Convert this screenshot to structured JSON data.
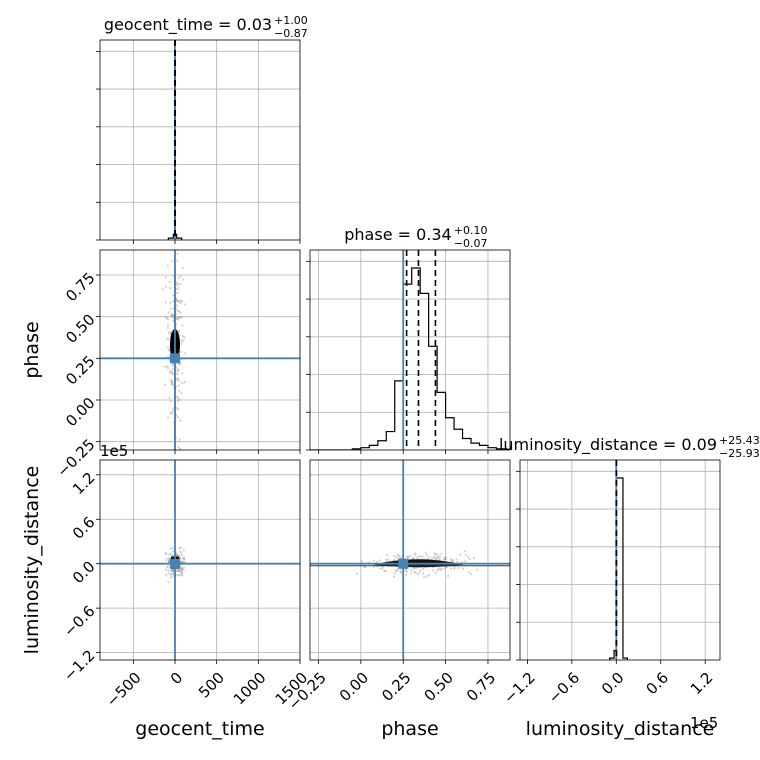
{
  "chart_data": [
    {
      "type": "histogram",
      "panel": "geocent_time",
      "title": "geocent_time = 0.03",
      "title_value": {
        "sup": "+1.00",
        "sub": "−0.87"
      },
      "xlim": [
        -900,
        1500
      ],
      "bins": {
        "edges": [
          -80,
          -20,
          -5,
          5,
          20,
          80
        ],
        "counts": [
          0.01,
          0.03,
          0.97,
          0.03,
          0.01
        ]
      },
      "quantiles": [
        -0.84,
        0.03,
        1.03
      ],
      "truth": 0,
      "grid": true
    },
    {
      "type": "histogram",
      "panel": "phase",
      "title": "phase = 0.34",
      "title_value": {
        "sup": "+0.10",
        "sub": "−0.07"
      },
      "xlim": [
        -0.3,
        0.88
      ],
      "bins": {
        "edges": [
          -0.3,
          -0.25,
          -0.2,
          -0.15,
          -0.1,
          -0.05,
          0.0,
          0.05,
          0.1,
          0.15,
          0.2,
          0.25,
          0.3,
          0.35,
          0.4,
          0.45,
          0.5,
          0.55,
          0.6,
          0.65,
          0.7,
          0.75,
          0.8,
          0.85
        ],
        "counts": [
          0,
          0,
          0,
          0,
          0,
          0.005,
          0.01,
          0.02,
          0.04,
          0.08,
          0.3,
          0.72,
          0.79,
          0.68,
          0.45,
          0.25,
          0.14,
          0.09,
          0.05,
          0.03,
          0.02,
          0.01,
          0.005
        ]
      },
      "quantiles": [
        0.27,
        0.34,
        0.44
      ],
      "truth": 0.25,
      "grid": true
    },
    {
      "type": "histogram",
      "panel": "luminosity_distance",
      "title": "luminosity_distance = 0.09",
      "title_value": {
        "sup": "+25.43",
        "sub": "−25.93"
      },
      "xlim": [
        -130000,
        140000
      ],
      "bins": {
        "edges": [
          -9000,
          -3000,
          0,
          9000,
          15000
        ],
        "counts": [
          0.01,
          0.05,
          0.96,
          0.01
        ]
      },
      "quantiles": [
        -25.84,
        0.09,
        25.52
      ],
      "truth": 0,
      "grid": true
    },
    {
      "type": "scatter",
      "panel": "phase vs geocent_time",
      "xlim": [
        -900,
        1500
      ],
      "ylim": [
        -0.3,
        0.9
      ],
      "core": {
        "x": 0,
        "y": 0.33
      },
      "truth": {
        "x": 0,
        "y": 0.25
      },
      "grid": true
    },
    {
      "type": "scatter",
      "panel": "luminosity_distance vs geocent_time",
      "xlim": [
        -900,
        1500
      ],
      "ylim": [
        -130000,
        140000
      ],
      "core": {
        "x": 0,
        "y": 0
      },
      "truth": {
        "x": 0,
        "y": 0
      },
      "grid": true
    },
    {
      "type": "scatter",
      "panel": "luminosity_distance vs phase",
      "xlim": [
        -0.3,
        0.88
      ],
      "ylim": [
        -130000,
        140000
      ],
      "core": {
        "x": 0.34,
        "y": 0
      },
      "truth": {
        "x": 0.25,
        "y": 0
      },
      "grid": true
    }
  ],
  "axes": {
    "geocent_time": {
      "label": "geocent_time",
      "ticks": [
        -500,
        0,
        500,
        1000,
        1500
      ],
      "tick_labels": [
        "−500",
        "0",
        "500",
        "1000",
        "1500"
      ]
    },
    "phase": {
      "label": "phase",
      "ticks": [
        -0.25,
        0.0,
        0.25,
        0.5,
        0.75
      ],
      "tick_labels": [
        "−0.25",
        "0.00",
        "0.25",
        "0.50",
        "0.75"
      ]
    },
    "luminosity_distance": {
      "label": "luminosity_distance",
      "ticks": [
        -120000,
        -60000,
        0,
        60000,
        120000
      ],
      "tick_labels": [
        "−1.2",
        "−0.6",
        "0.0",
        "0.6",
        "1.2"
      ],
      "offset_text": "1e5"
    }
  },
  "colors": {
    "truth": "#4682b4",
    "samples": "#000000",
    "grid": "#b0b0b0"
  }
}
